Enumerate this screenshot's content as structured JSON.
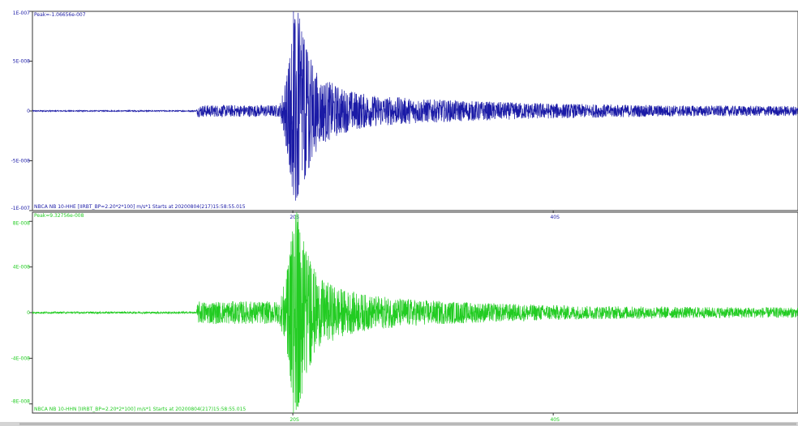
{
  "chart_data": [
    {
      "type": "line",
      "channel": "NBCA NB 10-HHE",
      "peak_label": "Peak=-1.06656e-007",
      "footer_label": "NBCA NB 10-HHE  [IIRBT_BP=2.20*2*100] m/s*1 Starts at 20200804(217)15:58:55.015",
      "y_tick_labels": [
        "1E-007",
        "5E-008",
        "0",
        "-5E-008",
        "-1E-007"
      ],
      "y_tick_values": [
        1e-07,
        5e-08,
        0,
        -5e-08,
        -1e-07
      ],
      "ylim": [
        -1e-07,
        1e-07
      ],
      "x_tick_labels": [
        "20S",
        "40S"
      ],
      "x_tick_values": [
        20,
        40
      ],
      "xlim": [
        0,
        58.8
      ],
      "color": "#1a1aa6",
      "waveform_envelope": {
        "x": [
          0,
          12.6,
          12.7,
          19.0,
          19.6,
          19.9,
          20.3,
          21.0,
          22.0,
          24.0,
          26.0,
          30.0,
          36.0,
          42.0,
          50.0,
          58.8
        ],
        "amplitude": [
          6e-10,
          6e-10,
          6e-09,
          6e-09,
          4.5e-08,
          7.5e-08,
          1.06656e-07,
          6.5e-08,
          3.5e-08,
          2.2e-08,
          1.6e-08,
          1.2e-08,
          9e-09,
          7e-09,
          5.5e-09,
          5e-09
        ]
      }
    },
    {
      "type": "line",
      "channel": "NBCA NB 10-HHN",
      "peak_label": "Peak=9.32756e-008",
      "footer_label": "NBCA NB 10-HHN  [IIRBT_BP=2.20*2*100] m/s*1 Starts at 20200804(217)15:58:55.015",
      "y_tick_labels": [
        "8E-008",
        "4E-008",
        "0",
        "-4E-008",
        "-8E-008"
      ],
      "y_tick_values": [
        8e-08,
        4e-08,
        0,
        -4e-08,
        -8e-08
      ],
      "ylim": [
        -8.8e-08,
        8.8e-08
      ],
      "x_tick_labels": [
        "20S",
        "40S"
      ],
      "x_tick_values": [
        20,
        40
      ],
      "xlim": [
        0,
        58.8
      ],
      "color": "#22cc22",
      "waveform_envelope": {
        "x": [
          0,
          12.6,
          12.7,
          19.0,
          19.6,
          19.9,
          20.3,
          21.0,
          22.0,
          24.0,
          26.0,
          30.0,
          36.0,
          42.0,
          50.0,
          58.8
        ],
        "amplitude": [
          8e-10,
          8e-10,
          1e-08,
          1e-08,
          4e-08,
          7e-08,
          9.32756e-08,
          5.5e-08,
          3e-08,
          2e-08,
          1.5e-08,
          1.1e-08,
          8e-09,
          6e-09,
          5e-09,
          4.5e-09
        ]
      }
    }
  ]
}
